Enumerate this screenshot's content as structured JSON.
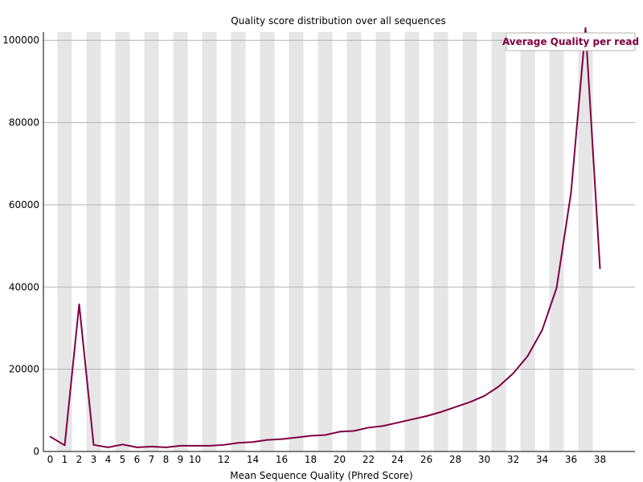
{
  "chart_data": {
    "type": "line",
    "title": "Quality score distribution over all sequences",
    "xlabel": "Mean Sequence Quality (Phred Score)",
    "ylabel": "",
    "x": [
      0,
      1,
      2,
      3,
      4,
      5,
      6,
      7,
      8,
      9,
      10,
      11,
      12,
      13,
      14,
      15,
      16,
      17,
      18,
      19,
      20,
      21,
      22,
      23,
      24,
      25,
      26,
      27,
      28,
      29,
      30,
      31,
      32,
      33,
      34,
      35,
      36,
      37,
      38
    ],
    "x_tick_labels": [
      "0",
      "1",
      "2",
      "3",
      "4",
      "5",
      "6",
      "7",
      "8",
      "9",
      "10",
      "12",
      "14",
      "16",
      "18",
      "20",
      "22",
      "24",
      "26",
      "28",
      "30",
      "32",
      "34",
      "36",
      "38"
    ],
    "x_tick_values": [
      0,
      1,
      2,
      3,
      4,
      5,
      6,
      7,
      8,
      9,
      10,
      12,
      14,
      16,
      18,
      20,
      22,
      24,
      26,
      28,
      30,
      32,
      34,
      36,
      38
    ],
    "y_tick_labels": [
      "0",
      "20000",
      "40000",
      "60000",
      "80000",
      "100000"
    ],
    "y_tick_values": [
      0,
      20000,
      40000,
      60000,
      80000,
      100000
    ],
    "ylim": [
      0,
      102000
    ],
    "xlim": [
      0,
      38
    ],
    "grid": true,
    "legend_position": "top-right",
    "series": [
      {
        "name": "Average Quality per read",
        "color": "#800040",
        "values": [
          3600,
          1500,
          35800,
          1600,
          1000,
          1700,
          1000,
          1200,
          1000,
          1400,
          1400,
          1400,
          1600,
          2100,
          2300,
          2800,
          3000,
          3400,
          3800,
          4000,
          4800,
          5000,
          5800,
          6200,
          7000,
          7800,
          8600,
          9600,
          10800,
          12000,
          13500,
          15800,
          19000,
          23200,
          29500,
          39800,
          63000,
          103000,
          44500
        ]
      }
    ],
    "colors": {
      "band_shade": "#e6e6e6",
      "grid_line": "#b4b4b4",
      "axis": "#000000"
    }
  }
}
